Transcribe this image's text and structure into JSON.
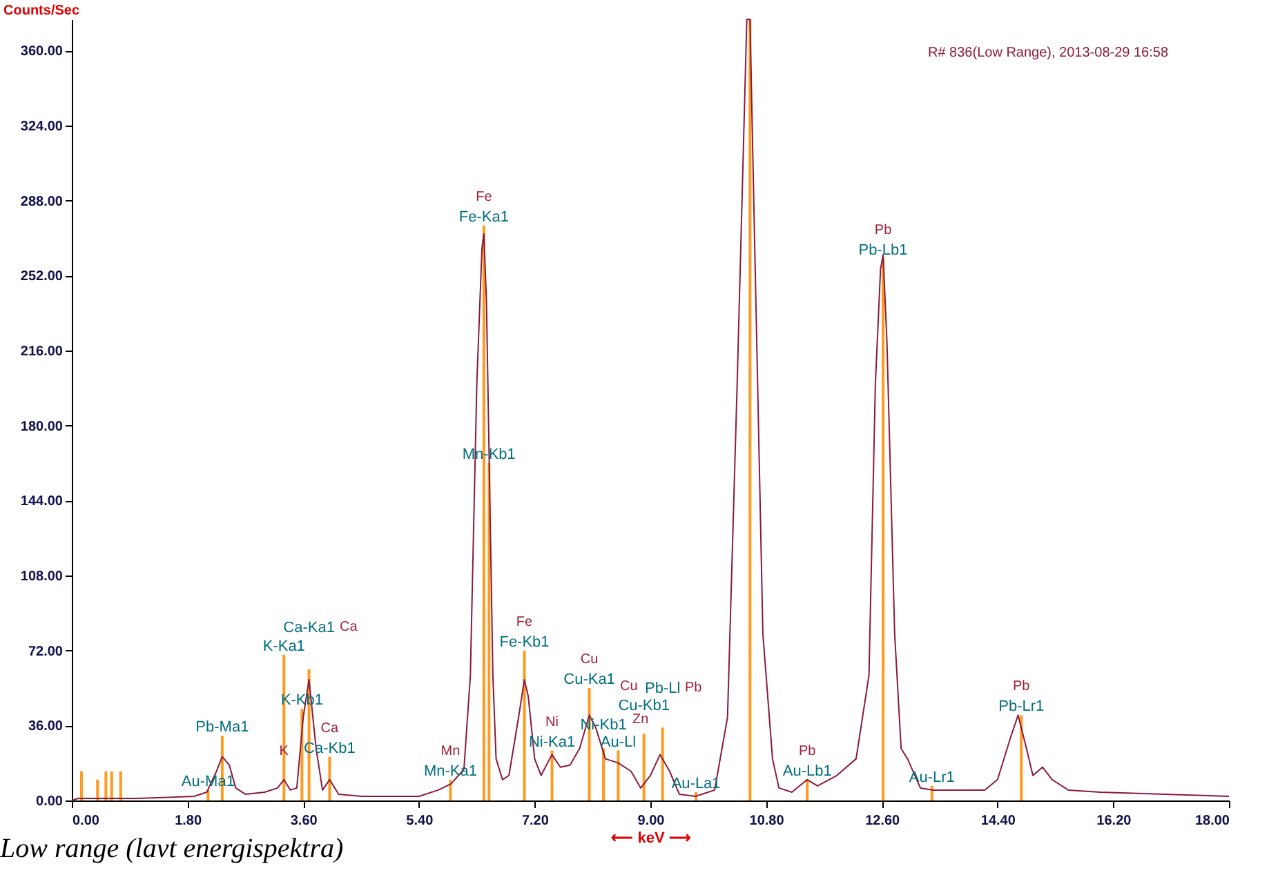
{
  "chart_data": {
    "type": "line",
    "ylabel": "Counts/Sec",
    "xlabel": "⟵ keV ⟶",
    "xlim": [
      0,
      18
    ],
    "ylim": [
      0,
      375
    ],
    "xticks": [
      {
        "value": 0,
        "label": "0.00"
      },
      {
        "value": 1.8,
        "label": "1.80"
      },
      {
        "value": 3.6,
        "label": "3.60"
      },
      {
        "value": 5.4,
        "label": "5.40"
      },
      {
        "value": 7.2,
        "label": "7.20"
      },
      {
        "value": 9,
        "label": "9.00"
      },
      {
        "value": 10.8,
        "label": "10.80"
      },
      {
        "value": 12.6,
        "label": "12.60"
      },
      {
        "value": 14.4,
        "label": "14.40"
      },
      {
        "value": 16.2,
        "label": "16.20"
      },
      {
        "value": 18,
        "label": "18.00"
      }
    ],
    "yticks": [
      {
        "value": 0,
        "label": "0.00"
      },
      {
        "value": 36,
        "label": "36.00"
      },
      {
        "value": 72,
        "label": "72.00"
      },
      {
        "value": 108,
        "label": "108.00"
      },
      {
        "value": 144,
        "label": "144.00"
      },
      {
        "value": 180,
        "label": "180.00"
      },
      {
        "value": 216,
        "label": "216.00"
      },
      {
        "value": 252,
        "label": "252.00"
      },
      {
        "value": 288,
        "label": "288.00"
      },
      {
        "value": 324,
        "label": "324.00"
      },
      {
        "value": 360,
        "label": "360.00"
      }
    ],
    "annotations": [
      "R# 836(Low Range), 2013-08-29 16:58",
      "Low range (lavt energispektra)",
      "Zn",
      "Ca",
      "Cu",
      "Pb",
      {
        "text": "Fe",
        "x": 6.41,
        "y": 276
      },
      {
        "text": "Pb",
        "x": 12.62,
        "y": 260
      },
      {
        "text": "K",
        "x": 3.3,
        "y": 10
      },
      {
        "text": "Ca",
        "x": 4.01,
        "y": 21
      },
      {
        "text": "Mn",
        "x": 5.89,
        "y": 10
      },
      {
        "text": "Fe",
        "x": 7.04,
        "y": 72
      },
      {
        "text": "Ni",
        "x": 7.47,
        "y": 24
      },
      {
        "text": "Cu",
        "x": 8.05,
        "y": 54
      },
      {
        "text": "Pb",
        "x": 11.44,
        "y": 10
      },
      {
        "text": "Pb",
        "x": 14.77,
        "y": 41
      }
    ],
    "series": [
      {
        "color": "#8b1a3a",
        "x": [
          0,
          0.1,
          0.5,
          1.0,
          1.5,
          1.9,
          2.1,
          2.25,
          2.34,
          2.45,
          2.55,
          2.7,
          3.0,
          3.2,
          3.3,
          3.4,
          3.5,
          3.6,
          3.69,
          3.8,
          3.9,
          4.01,
          4.15,
          4.5,
          5.0,
          5.4,
          5.7,
          5.9,
          6.1,
          6.2,
          6.3,
          6.38,
          6.41,
          6.45,
          6.5,
          6.55,
          6.6,
          6.7,
          6.8,
          6.95,
          7.04,
          7.1,
          7.2,
          7.3,
          7.4,
          7.47,
          7.6,
          7.75,
          7.9,
          8.05,
          8.15,
          8.3,
          8.5,
          8.7,
          8.85,
          9.0,
          9.15,
          9.3,
          9.45,
          9.7,
          10.0,
          10.2,
          10.35,
          10.5,
          10.55,
          10.6,
          10.75,
          10.9,
          11.0,
          11.2,
          11.44,
          11.6,
          11.9,
          12.2,
          12.4,
          12.5,
          12.58,
          12.62,
          12.68,
          12.8,
          12.9,
          13.0,
          13.2,
          13.4,
          13.8,
          14.2,
          14.4,
          14.6,
          14.72,
          14.85,
          14.95,
          15.1,
          15.25,
          15.5,
          16.0,
          17.0,
          18.0
        ],
        "values": [
          0,
          1,
          1,
          1,
          1.5,
          2,
          4,
          14,
          21,
          17,
          6,
          3,
          4,
          6,
          10,
          5,
          6,
          40,
          58,
          25,
          5,
          10,
          3,
          2,
          2,
          2,
          5,
          8,
          15,
          60,
          200,
          265,
          272,
          240,
          150,
          60,
          20,
          10,
          12,
          40,
          58,
          50,
          20,
          12,
          18,
          22,
          16,
          17,
          25,
          41,
          35,
          20,
          18,
          14,
          6,
          12,
          22,
          14,
          3,
          2,
          5,
          40,
          200,
          375,
          375,
          300,
          80,
          20,
          6,
          4,
          10,
          7,
          12,
          20,
          60,
          200,
          255,
          262,
          220,
          80,
          25,
          20,
          6,
          5,
          5,
          5,
          10,
          30,
          41,
          25,
          12,
          16,
          10,
          5,
          4,
          3,
          2
        ]
      },
      {
        "type": "bar",
        "color": "#ff9a1e",
        "x": [
          0.15,
          0.4,
          0.53,
          0.62,
          0.76,
          2.12,
          2.34,
          3.3,
          3.58,
          3.69,
          4.01,
          5.89,
          6.41,
          6.49,
          7.04,
          7.47,
          8.05,
          8.27,
          8.5,
          8.9,
          9.19,
          9.71,
          10.55,
          11.44,
          12.62,
          13.38,
          14.77
        ],
        "values": [
          14,
          10,
          14,
          14,
          14,
          5,
          31,
          70,
          44,
          63,
          21,
          10,
          276,
          162,
          72,
          24,
          54,
          25,
          24,
          32,
          35,
          4,
          375,
          10,
          260,
          7,
          41
        ],
        "value_labels": [
          null,
          null,
          null,
          null,
          null,
          "Au-Ma1",
          "Pb-Ma1",
          "K-Ka1",
          "K-Kb1",
          "Ca-Ka1",
          "Ca-Kb1",
          "Mn-Ka1",
          "Fe-Ka1",
          "Mn-Kb1",
          "Fe-Kb1",
          "Ni-Ka1",
          "Cu-Ka1",
          "Ni-Kb1",
          "Au-Ll",
          "Cu-Kb1",
          "Pb-Ll",
          "Au-La1",
          null,
          "Au-Lb1",
          "Pb-Lb1",
          "Au-Lr1",
          "Pb-Lr1"
        ]
      }
    ]
  }
}
